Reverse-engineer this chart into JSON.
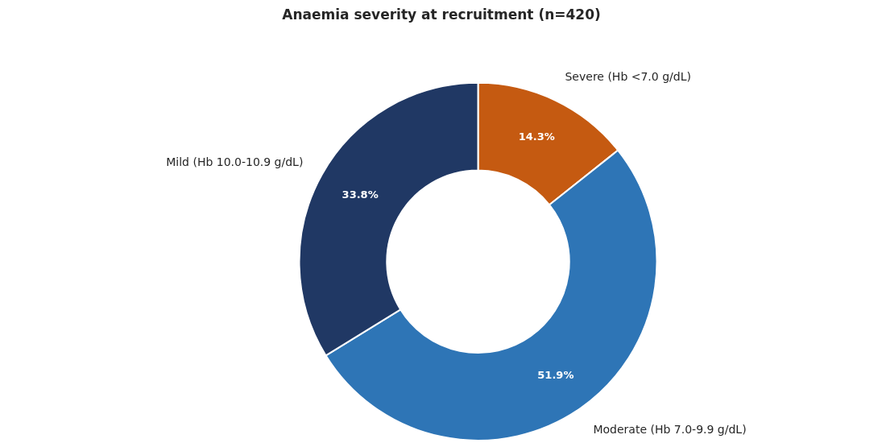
{
  "chart_data": {
    "type": "donut",
    "title": "Anaemia severity at recruitment (n=420)",
    "categories": [
      "Severe (Hb <7.0 g/dL)",
      "Moderate (Hb 7.0-9.9 g/dL)",
      "Mild (Hb 10.0-10.9 g/dL)"
    ],
    "values": [
      14.3,
      51.9,
      33.8
    ],
    "colors": [
      "#c55a11",
      "#2e75b6",
      "#203864"
    ],
    "value_labels": [
      "14.3%",
      "51.9%",
      "33.8%"
    ]
  }
}
